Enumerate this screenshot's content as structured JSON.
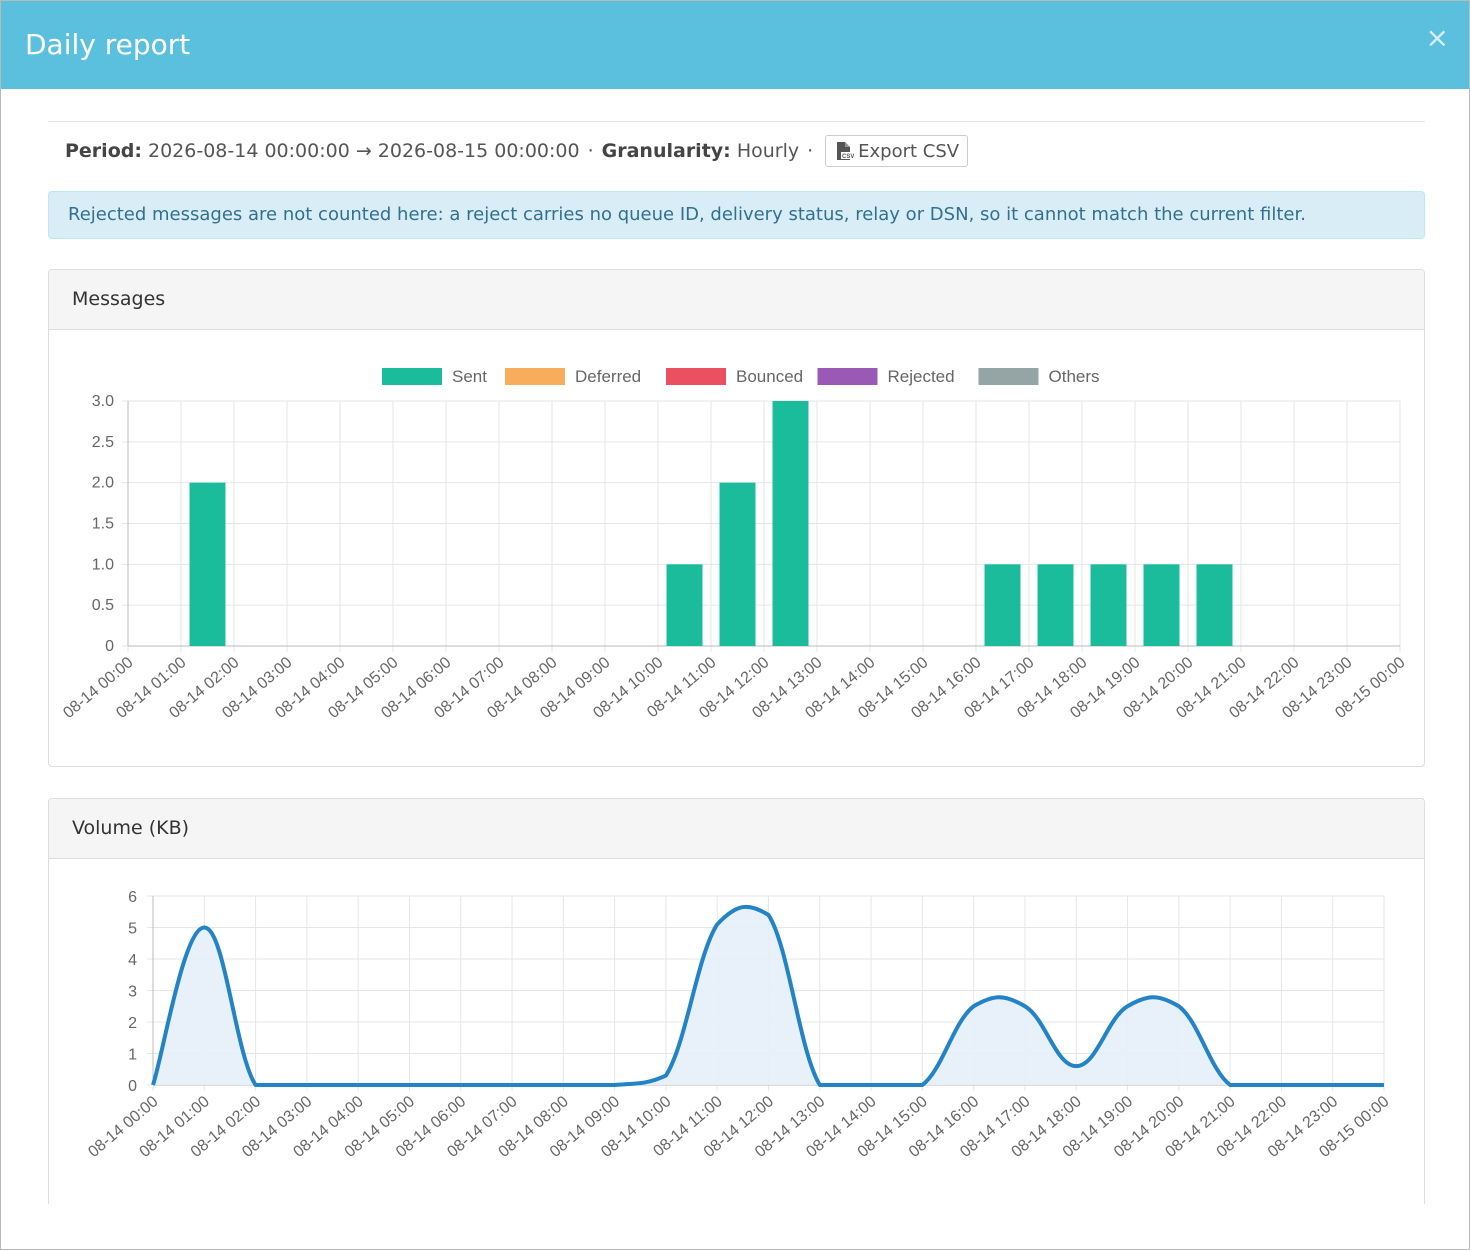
{
  "modal": {
    "title": "Daily report",
    "close_label": "×"
  },
  "filter": {
    "period_label": "Period:",
    "period_value": "2026-08-14 00:00:00 → 2026-08-15 00:00:00",
    "separator": "·",
    "granularity_label": "Granularity:",
    "granularity_value": "Hourly",
    "export_label": "Export CSV",
    "export_icon": "csv-file-icon"
  },
  "alert": {
    "text": "Rejected messages are not counted here: a reject carries no queue ID, delivery status, relay or DSN, so it cannot match the current filter."
  },
  "panels": {
    "messages_title": "Messages",
    "volume_title": "Volume (KB)"
  },
  "colors": {
    "header": "#5bc0de",
    "sent": "#1abc9c",
    "deferred": "#f8ad5c",
    "bounced": "#eb5060",
    "rejected": "#9b59b6",
    "others": "#95a5a6",
    "volume_line": "#2283c6",
    "volume_fill": "#e6f0f9"
  },
  "chart_data": [
    {
      "type": "bar",
      "title": "",
      "categories": [
        "08-14 00:00",
        "08-14 01:00",
        "08-14 02:00",
        "08-14 03:00",
        "08-14 04:00",
        "08-14 05:00",
        "08-14 06:00",
        "08-14 07:00",
        "08-14 08:00",
        "08-14 09:00",
        "08-14 10:00",
        "08-14 11:00",
        "08-14 12:00",
        "08-14 13:00",
        "08-14 14:00",
        "08-14 15:00",
        "08-14 16:00",
        "08-14 17:00",
        "08-14 18:00",
        "08-14 19:00",
        "08-14 20:00",
        "08-14 21:00",
        "08-14 22:00",
        "08-14 23:00",
        "08-15 00:00"
      ],
      "series": [
        {
          "name": "Sent",
          "values": [
            0,
            2,
            0,
            0,
            0,
            0,
            0,
            0,
            0,
            0,
            1,
            2,
            3,
            0,
            0,
            0,
            1,
            1,
            1,
            1,
            1,
            0,
            0,
            0,
            0
          ]
        },
        {
          "name": "Deferred",
          "values": [
            0,
            0,
            0,
            0,
            0,
            0,
            0,
            0,
            0,
            0,
            0,
            0,
            0,
            0,
            0,
            0,
            0,
            0,
            0,
            0,
            0,
            0,
            0,
            0,
            0
          ]
        },
        {
          "name": "Bounced",
          "values": [
            0,
            0,
            0,
            0,
            0,
            0,
            0,
            0,
            0,
            0,
            0,
            0,
            0,
            0,
            0,
            0,
            0,
            0,
            0,
            0,
            0,
            0,
            0,
            0,
            0
          ]
        },
        {
          "name": "Rejected",
          "values": [
            0,
            0,
            0,
            0,
            0,
            0,
            0,
            0,
            0,
            0,
            0,
            0,
            0,
            0,
            0,
            0,
            0,
            0,
            0,
            0,
            0,
            0,
            0,
            0,
            0
          ]
        },
        {
          "name": "Others",
          "values": [
            0,
            0,
            0,
            0,
            0,
            0,
            0,
            0,
            0,
            0,
            0,
            0,
            0,
            0,
            0,
            0,
            0,
            0,
            0,
            0,
            0,
            0,
            0,
            0,
            0
          ]
        }
      ],
      "ylim": [
        0,
        3
      ],
      "yticks": [
        "0",
        "0.5",
        "1.0",
        "1.5",
        "2.0",
        "2.5",
        "3.0"
      ],
      "legend": "top-center",
      "grid": true
    },
    {
      "type": "area",
      "title": "",
      "x": [
        "08-14 00:00",
        "08-14 01:00",
        "08-14 02:00",
        "08-14 03:00",
        "08-14 04:00",
        "08-14 05:00",
        "08-14 06:00",
        "08-14 07:00",
        "08-14 08:00",
        "08-14 09:00",
        "08-14 10:00",
        "08-14 11:00",
        "08-14 12:00",
        "08-14 13:00",
        "08-14 14:00",
        "08-14 15:00",
        "08-14 16:00",
        "08-14 17:00",
        "08-14 18:00",
        "08-14 19:00",
        "08-14 20:00",
        "08-14 21:00",
        "08-14 22:00",
        "08-14 23:00",
        "08-15 00:00"
      ],
      "series": [
        {
          "values": [
            0,
            5,
            0,
            0,
            0,
            0,
            0,
            0,
            0,
            0,
            0.3,
            5.1,
            5.4,
            0,
            0,
            0,
            2.5,
            2.5,
            0.6,
            2.5,
            2.5,
            0,
            0,
            0,
            0
          ]
        }
      ],
      "ylim": [
        0,
        6
      ],
      "yticks": [
        "0",
        "1",
        "2",
        "3",
        "4",
        "5",
        "6"
      ],
      "grid": true
    }
  ]
}
